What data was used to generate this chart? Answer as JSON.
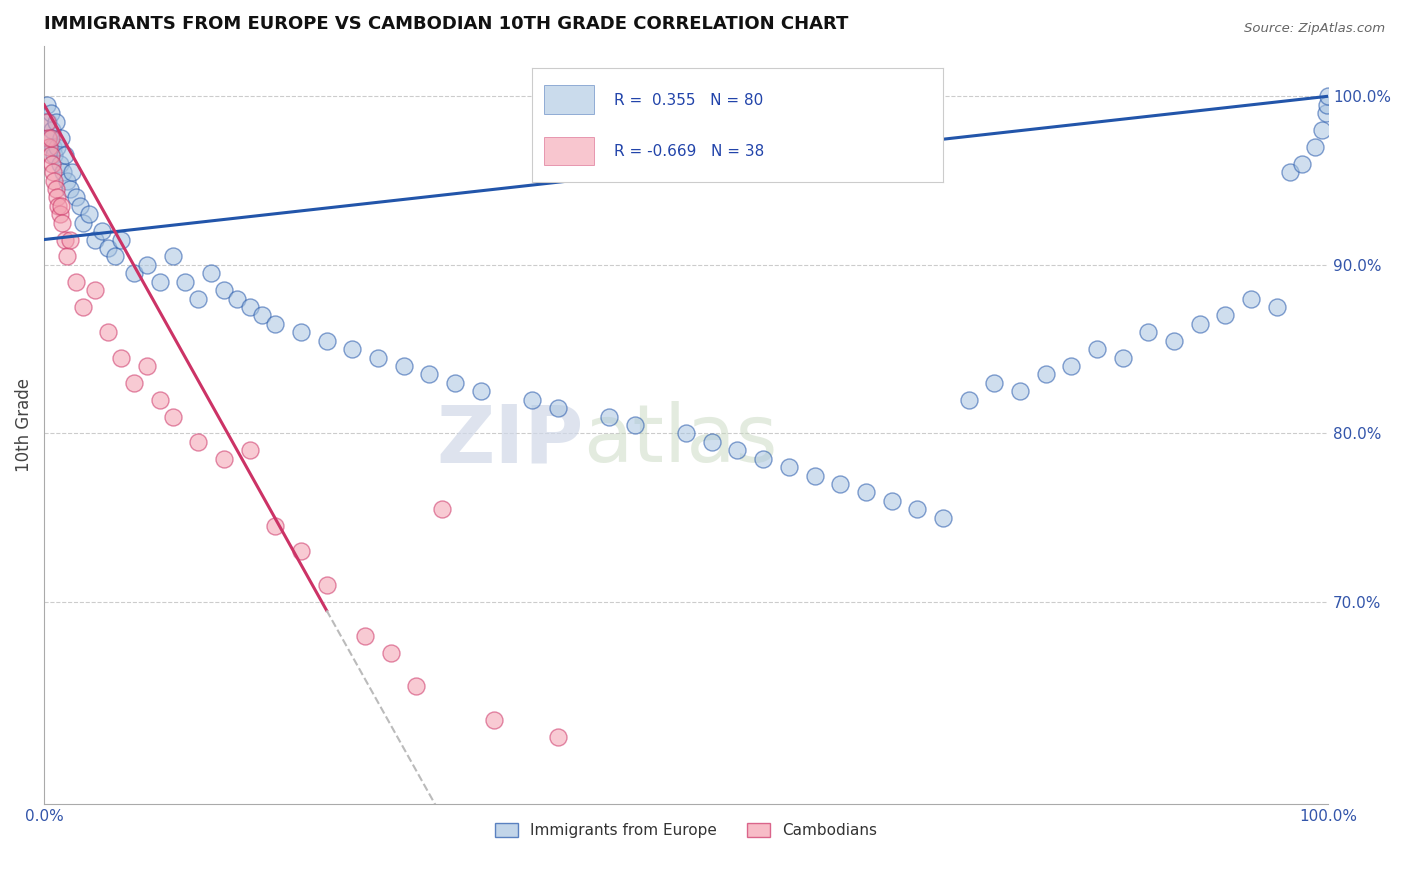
{
  "title": "IMMIGRANTS FROM EUROPE VS CAMBODIAN 10TH GRADE CORRELATION CHART",
  "source": "Source: ZipAtlas.com",
  "ylabel": "10th Grade",
  "right_yticks": [
    70.0,
    80.0,
    90.0,
    100.0
  ],
  "blue_R": 0.355,
  "blue_N": 80,
  "pink_R": -0.669,
  "pink_N": 38,
  "blue_color": "#A8C4E0",
  "pink_color": "#F4A0B0",
  "blue_line_color": "#2255AA",
  "pink_line_color": "#CC3366",
  "watermark_zip": "ZIP",
  "watermark_atlas": "atlas",
  "blue_points_x": [
    0.2,
    0.3,
    0.4,
    0.5,
    0.6,
    0.7,
    0.8,
    0.9,
    1.0,
    1.2,
    1.3,
    1.5,
    1.6,
    1.8,
    2.0,
    2.2,
    2.5,
    2.8,
    3.0,
    3.5,
    4.0,
    4.5,
    5.0,
    5.5,
    6.0,
    7.0,
    8.0,
    9.0,
    10.0,
    11.0,
    12.0,
    13.0,
    14.0,
    15.0,
    16.0,
    17.0,
    18.0,
    20.0,
    22.0,
    24.0,
    26.0,
    28.0,
    30.0,
    32.0,
    34.0,
    38.0,
    40.0,
    44.0,
    46.0,
    50.0,
    52.0,
    54.0,
    56.0,
    58.0,
    60.0,
    62.0,
    64.0,
    66.0,
    68.0,
    70.0,
    72.0,
    74.0,
    76.0,
    78.0,
    80.0,
    82.0,
    84.0,
    86.0,
    88.0,
    90.0,
    92.0,
    94.0,
    96.0,
    97.0,
    98.0,
    99.0,
    99.5,
    99.8,
    99.9,
    100.0
  ],
  "blue_points_y": [
    99.5,
    98.5,
    97.5,
    99.0,
    98.0,
    97.0,
    96.5,
    98.5,
    97.0,
    96.0,
    97.5,
    95.5,
    96.5,
    95.0,
    94.5,
    95.5,
    94.0,
    93.5,
    92.5,
    93.0,
    91.5,
    92.0,
    91.0,
    90.5,
    91.5,
    89.5,
    90.0,
    89.0,
    90.5,
    89.0,
    88.0,
    89.5,
    88.5,
    88.0,
    87.5,
    87.0,
    86.5,
    86.0,
    85.5,
    85.0,
    84.5,
    84.0,
    83.5,
    83.0,
    82.5,
    82.0,
    81.5,
    81.0,
    80.5,
    80.0,
    79.5,
    79.0,
    78.5,
    78.0,
    77.5,
    77.0,
    76.5,
    76.0,
    75.5,
    75.0,
    82.0,
    83.0,
    82.5,
    83.5,
    84.0,
    85.0,
    84.5,
    86.0,
    85.5,
    86.5,
    87.0,
    88.0,
    87.5,
    95.5,
    96.0,
    97.0,
    98.0,
    99.0,
    99.5,
    100.0
  ],
  "pink_points_x": [
    0.2,
    0.3,
    0.4,
    0.5,
    0.5,
    0.6,
    0.7,
    0.8,
    0.9,
    1.0,
    1.1,
    1.2,
    1.3,
    1.4,
    1.6,
    1.8,
    2.0,
    2.5,
    3.0,
    4.0,
    5.0,
    6.0,
    7.0,
    8.0,
    9.0,
    10.0,
    12.0,
    14.0,
    16.0,
    18.0,
    20.0,
    22.0,
    25.0,
    27.0,
    29.0,
    31.0,
    35.0,
    40.0
  ],
  "pink_points_y": [
    98.5,
    97.5,
    97.0,
    96.5,
    97.5,
    96.0,
    95.5,
    95.0,
    94.5,
    94.0,
    93.5,
    93.0,
    93.5,
    92.5,
    91.5,
    90.5,
    91.5,
    89.0,
    87.5,
    88.5,
    86.0,
    84.5,
    83.0,
    84.0,
    82.0,
    81.0,
    79.5,
    78.5,
    79.0,
    74.5,
    73.0,
    71.0,
    68.0,
    67.0,
    65.0,
    75.5,
    63.0,
    62.0
  ]
}
